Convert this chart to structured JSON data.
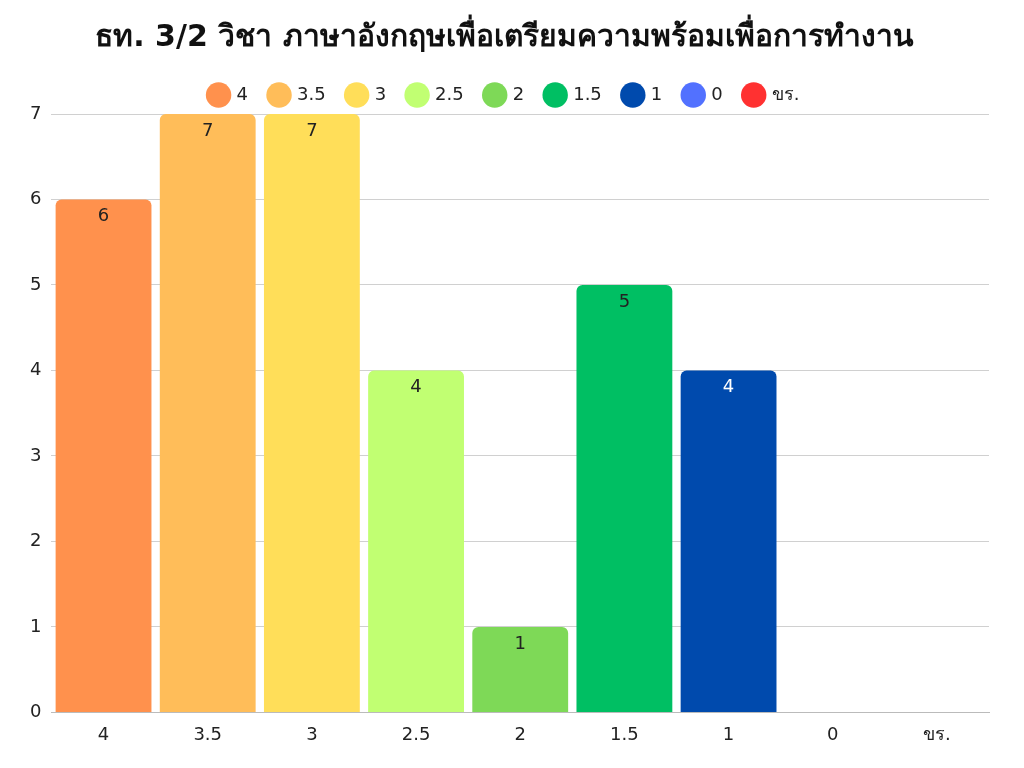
{
  "chart_data": {
    "type": "bar",
    "title": "ธท. 3/2 วิชา ภาษาอังกฤษเพื่อเตรียมความพร้อมเพื่อการทำงาน",
    "categories": [
      "4",
      "3.5",
      "3",
      "2.5",
      "2",
      "1.5",
      "1",
      "0",
      "ขร."
    ],
    "series": [
      {
        "name": "4",
        "color": "#ff914d",
        "values": [
          6,
          null,
          null,
          null,
          null,
          null,
          null,
          null,
          null
        ],
        "value_labels": [
          "6",
          null,
          null,
          null,
          null,
          null,
          null,
          null,
          null
        ]
      },
      {
        "name": "3.5",
        "color": "#ffbd59",
        "values": [
          null,
          7,
          null,
          null,
          null,
          null,
          null,
          null,
          null
        ],
        "value_labels": [
          null,
          "7",
          null,
          null,
          null,
          null,
          null,
          null,
          null
        ]
      },
      {
        "name": "3",
        "color": "#ffde59",
        "values": [
          null,
          null,
          7,
          null,
          null,
          null,
          null,
          null,
          null
        ],
        "value_labels": [
          null,
          null,
          "7",
          null,
          null,
          null,
          null,
          null,
          null
        ]
      },
      {
        "name": "2.5",
        "color": "#c1ff72",
        "values": [
          null,
          null,
          null,
          4,
          null,
          null,
          null,
          null,
          null
        ],
        "value_labels": [
          null,
          null,
          null,
          "4",
          null,
          null,
          null,
          null,
          null
        ]
      },
      {
        "name": "2",
        "color": "#7ed957",
        "values": [
          null,
          null,
          null,
          null,
          1,
          null,
          null,
          null,
          null
        ],
        "value_labels": [
          null,
          null,
          null,
          null,
          "1",
          null,
          null,
          null,
          null
        ]
      },
      {
        "name": "1.5",
        "color": "#00bf63",
        "values": [
          null,
          null,
          null,
          null,
          null,
          5,
          null,
          null,
          null
        ],
        "value_labels": [
          null,
          null,
          null,
          null,
          null,
          "5",
          null,
          null,
          null
        ]
      },
      {
        "name": "1",
        "color": "#004aad",
        "values": [
          null,
          null,
          null,
          null,
          null,
          null,
          4,
          null,
          null
        ],
        "value_labels": [
          null,
          null,
          null,
          null,
          null,
          null,
          "4",
          null,
          null
        ]
      },
      {
        "name": "0",
        "color": "#5271ff",
        "values": [
          null,
          null,
          null,
          null,
          null,
          null,
          null,
          0,
          null
        ]
      },
      {
        "name": "ขร.",
        "color": "#ff3131",
        "values": [
          null,
          null,
          null,
          null,
          null,
          null,
          null,
          null,
          0
        ]
      }
    ],
    "ylim": [
      0,
      7
    ],
    "yticks": [
      0,
      1,
      2,
      3,
      4,
      5,
      6,
      7
    ],
    "grid": "y",
    "legend": "top"
  }
}
